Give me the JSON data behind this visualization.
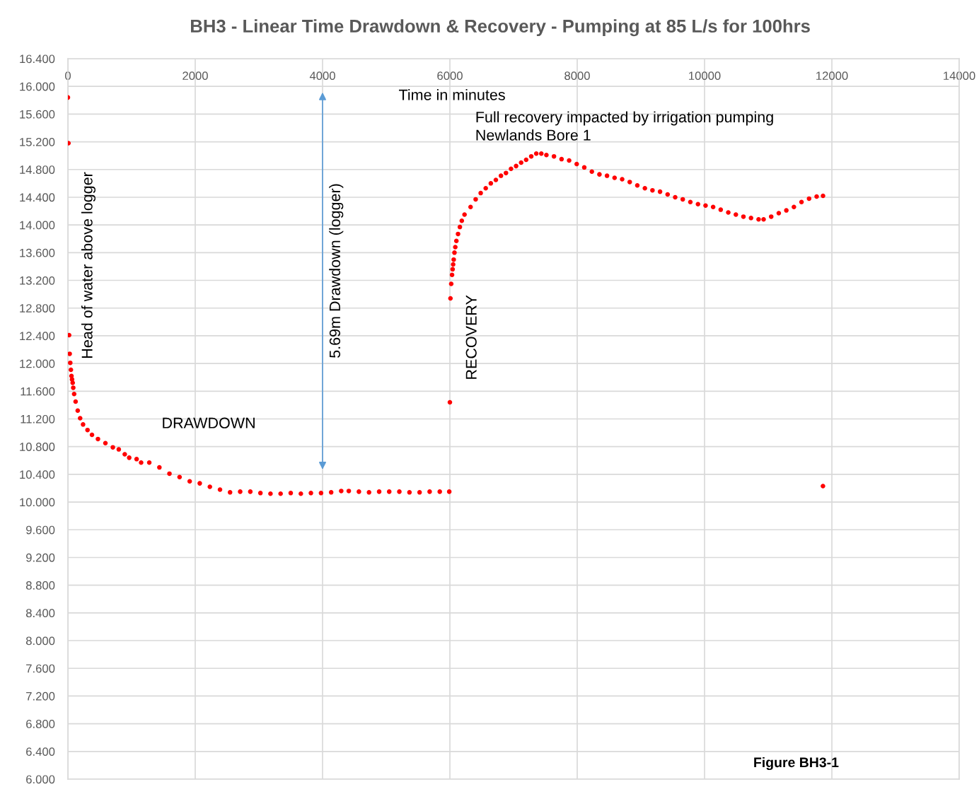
{
  "chart_data": {
    "type": "scatter",
    "title": "BH3 - Linear Time Drawdown & Recovery - Pumping at 85 L/s for 100hrs",
    "xlabel": "Time in minutes",
    "ylabel": "Head of water above logger",
    "annotations": [
      "DRAWDOWN",
      "5.69m Drawdown (logger)",
      "RECOVERY",
      "Full recovery impacted by irrigation pumping\nNewlands Bore 1",
      "Figure BH3-1"
    ],
    "xlim": [
      0,
      14000
    ],
    "xticks": [
      0,
      2000,
      4000,
      6000,
      8000,
      10000,
      12000,
      14000
    ],
    "ylim": [
      6,
      16.4
    ],
    "yticks": [
      {
        "value": 6,
        "label": "6.000"
      },
      {
        "value": 6.4,
        "label": "6.400"
      },
      {
        "value": 6.8,
        "label": "6.800"
      },
      {
        "value": 7.2,
        "label": "7.200"
      },
      {
        "value": 7.6,
        "label": "7.600"
      },
      {
        "value": 8,
        "label": "8.000"
      },
      {
        "value": 8.4,
        "label": "8.400"
      },
      {
        "value": 8.8,
        "label": "8.800"
      },
      {
        "value": 9.2,
        "label": "9.200"
      },
      {
        "value": 9.6,
        "label": "9.600"
      },
      {
        "value": 10,
        "label": "10.000"
      },
      {
        "value": 10.4,
        "label": "10.400"
      },
      {
        "value": 10.8,
        "label": "10.800"
      },
      {
        "value": 11.2,
        "label": "11.200"
      },
      {
        "value": 11.6,
        "label": "11.600"
      },
      {
        "value": 12,
        "label": "12.000"
      },
      {
        "value": 12.4,
        "label": "12.400"
      },
      {
        "value": 12.8,
        "label": "12.800"
      },
      {
        "value": 13.2,
        "label": "13.200"
      },
      {
        "value": 13.6,
        "label": "13.600"
      },
      {
        "value": 14,
        "label": "14.000"
      },
      {
        "value": 14.4,
        "label": "14.400"
      },
      {
        "value": 14.8,
        "label": "14.800"
      },
      {
        "value": 15.2,
        "label": "15.200"
      },
      {
        "value": 15.6,
        "label": "15.600"
      },
      {
        "value": 16,
        "label": "16.000"
      },
      {
        "value": 16.4,
        "label": "16.400"
      }
    ],
    "grid": true,
    "marker": "circle",
    "series": [
      {
        "color": "#ff0000",
        "x": [
          0,
          9,
          19,
          28,
          37,
          47,
          56,
          65,
          75,
          84,
          98,
          121,
          154,
          192,
          238,
          308,
          378,
          472,
          589,
          706,
          799,
          893,
          963,
          1079,
          1150,
          1278,
          1437,
          1595,
          1754,
          1913,
          2071,
          2230,
          2389,
          2547,
          2706,
          2865,
          3024,
          3182,
          3341,
          3500,
          3659,
          3817,
          3976,
          4135,
          4293,
          4412,
          4571,
          4730,
          4889,
          5047,
          5206,
          5365,
          5524,
          5682,
          5841,
          5990,
          6000,
          6009,
          6021,
          6034,
          6043,
          6051,
          6060,
          6072,
          6085,
          6102,
          6128,
          6157,
          6187,
          6230,
          6325,
          6405,
          6484,
          6563,
          6643,
          6722,
          6802,
          6881,
          6960,
          7040,
          7119,
          7198,
          7278,
          7357,
          7436,
          7516,
          7635,
          7754,
          7873,
          7992,
          8111,
          8230,
          8349,
          8468,
          8587,
          8706,
          8825,
          8944,
          9063,
          9182,
          9301,
          9420,
          9539,
          9658,
          9777,
          9897,
          10016,
          10135,
          10254,
          10373,
          10492,
          10611,
          10730,
          10849,
          10928,
          11047,
          11166,
          11285,
          11404,
          11523,
          11642,
          11761,
          11861,
          11860
        ],
        "values": [
          15.84,
          15.18,
          12.41,
          12.14,
          12.01,
          11.91,
          11.82,
          11.77,
          11.72,
          11.65,
          11.56,
          11.45,
          11.32,
          11.21,
          11.12,
          11.04,
          10.97,
          10.91,
          10.85,
          10.79,
          10.76,
          10.69,
          10.64,
          10.62,
          10.57,
          10.57,
          10.5,
          10.41,
          10.36,
          10.3,
          10.27,
          10.22,
          10.18,
          10.14,
          10.15,
          10.15,
          10.13,
          10.12,
          10.12,
          10.13,
          10.12,
          10.13,
          10.13,
          10.14,
          10.16,
          10.16,
          10.15,
          10.14,
          10.15,
          10.15,
          10.15,
          10.14,
          10.14,
          10.15,
          10.15,
          10.15,
          11.44,
          12.94,
          13.15,
          13.28,
          13.36,
          13.43,
          13.5,
          13.6,
          13.68,
          13.77,
          13.87,
          13.97,
          14.06,
          14.15,
          14.26,
          14.37,
          14.46,
          14.53,
          14.6,
          14.65,
          14.71,
          14.75,
          14.81,
          14.85,
          14.9,
          14.94,
          14.99,
          15.03,
          15.03,
          15.01,
          14.99,
          14.95,
          14.93,
          14.88,
          14.83,
          14.77,
          14.73,
          14.71,
          14.68,
          14.66,
          14.62,
          14.57,
          14.53,
          14.5,
          14.48,
          14.44,
          14.4,
          14.37,
          14.33,
          14.3,
          14.28,
          14.26,
          14.22,
          14.18,
          14.15,
          14.12,
          14.1,
          14.08,
          14.08,
          14.12,
          14.17,
          14.21,
          14.26,
          14.33,
          14.38,
          14.41,
          14.42,
          10.23
        ]
      }
    ]
  }
}
